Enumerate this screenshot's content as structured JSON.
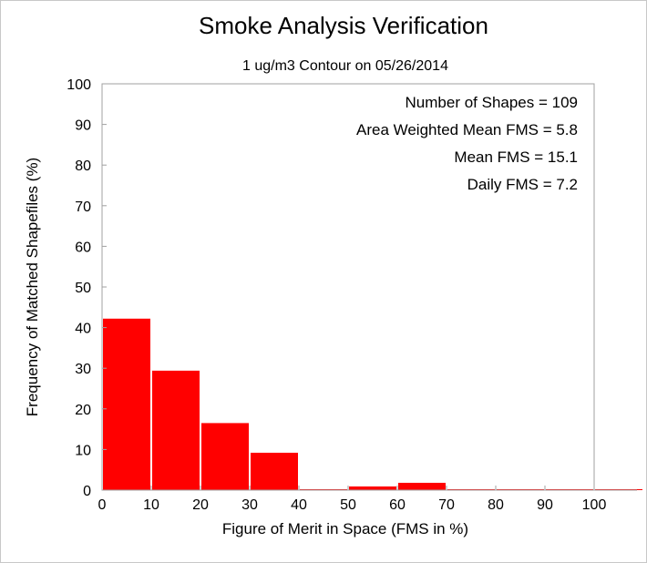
{
  "chart_data": {
    "type": "bar",
    "title": "Smoke Analysis Verification",
    "subtitle": "1 ug/m3 Contour on 05/26/2014",
    "xlabel": "Figure of Merit in Space (FMS in %)",
    "ylabel": "Frequency of Matched Shapefiles (%)",
    "xlim": [
      0,
      100
    ],
    "ylim": [
      0,
      100
    ],
    "x_ticks": [
      "0",
      "10",
      "20",
      "30",
      "40",
      "50",
      "60",
      "70",
      "80",
      "90",
      "100"
    ],
    "y_ticks": [
      "0",
      "10",
      "20",
      "30",
      "40",
      "50",
      "60",
      "70",
      "80",
      "90",
      "100"
    ],
    "bins": [
      {
        "start": 0,
        "end": 10,
        "value": 42.2
      },
      {
        "start": 10,
        "end": 20,
        "value": 29.4
      },
      {
        "start": 20,
        "end": 30,
        "value": 16.5
      },
      {
        "start": 30,
        "end": 40,
        "value": 9.2
      },
      {
        "start": 40,
        "end": 50,
        "value": 0
      },
      {
        "start": 50,
        "end": 60,
        "value": 0.9
      },
      {
        "start": 60,
        "end": 70,
        "value": 1.8
      },
      {
        "start": 70,
        "end": 80,
        "value": 0
      },
      {
        "start": 80,
        "end": 90,
        "value": 0
      },
      {
        "start": 90,
        "end": 100,
        "value": 0
      },
      {
        "start": 100,
        "end": 110,
        "value": 0
      }
    ],
    "bar_color": "#ff0000",
    "annotations": [
      "Number of Shapes = 109",
      "Area Weighted Mean FMS = 5.8",
      "Mean FMS = 15.1",
      "Daily FMS = 7.2"
    ],
    "grid": false
  }
}
